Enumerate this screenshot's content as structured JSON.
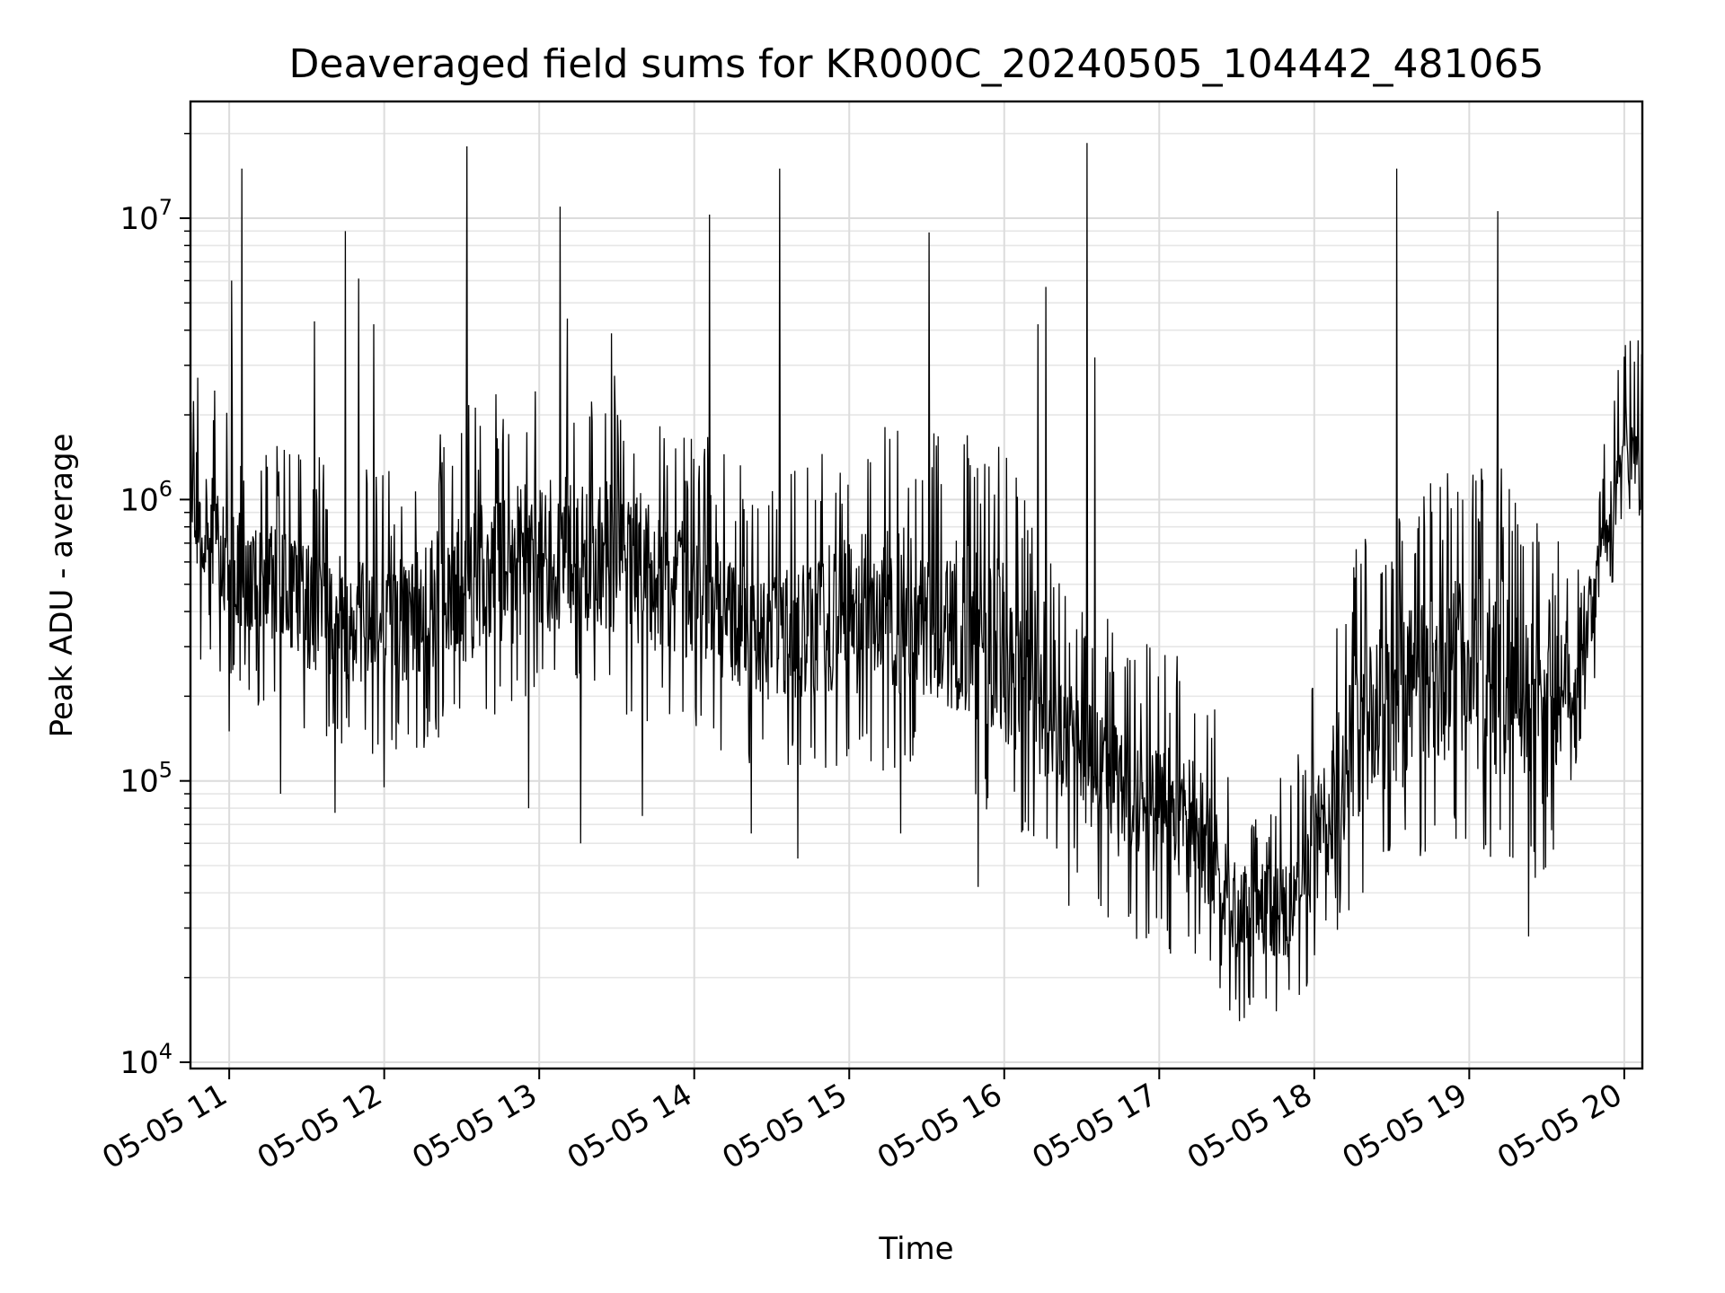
{
  "chart_data": {
    "type": "line",
    "title": "Deaveraged field sums for KR000C_20240505_104442_481065",
    "xlabel": "Time",
    "ylabel": "Peak ADU - average",
    "yscale": "log",
    "ylim": [
      9500,
      26000000
    ],
    "xlim": [
      "2024-05-05 10:45",
      "2024-05-05 20:07"
    ],
    "grid": true,
    "line_color": "#000000",
    "x_ticks": [
      "05-05 11",
      "05-05 12",
      "05-05 13",
      "05-05 14",
      "05-05 15",
      "05-05 16",
      "05-05 17",
      "05-05 18",
      "05-05 19",
      "05-05 20"
    ],
    "y_ticks": [
      {
        "base": "10",
        "exp": "4"
      },
      {
        "base": "10",
        "exp": "5"
      },
      {
        "base": "10",
        "exp": "6"
      },
      {
        "base": "10",
        "exp": "7"
      }
    ],
    "series": [
      {
        "envelope": [
          {
            "t": "2024-05-05 10:45",
            "low": 500000,
            "high": 2000000
          },
          {
            "t": "2024-05-05 11:00",
            "low": 300000,
            "high": 1200000
          },
          {
            "t": "2024-05-05 11:30",
            "low": 200000,
            "high": 900000
          },
          {
            "t": "2024-05-05 12:00",
            "low": 170000,
            "high": 700000
          },
          {
            "t": "2024-05-05 12:30",
            "low": 200000,
            "high": 1200000
          },
          {
            "t": "2024-05-05 13:00",
            "low": 250000,
            "high": 1600000
          },
          {
            "t": "2024-05-05 13:30",
            "low": 250000,
            "high": 1600000
          },
          {
            "t": "2024-05-05 14:00",
            "low": 200000,
            "high": 1000000
          },
          {
            "t": "2024-05-05 14:30",
            "low": 150000,
            "high": 700000
          },
          {
            "t": "2024-05-05 15:00",
            "low": 150000,
            "high": 1000000
          },
          {
            "t": "2024-05-05 15:30",
            "low": 150000,
            "high": 1100000
          },
          {
            "t": "2024-05-05 16:00",
            "low": 100000,
            "high": 900000
          },
          {
            "t": "2024-05-05 16:20",
            "low": 70000,
            "high": 300000
          },
          {
            "t": "2024-05-05 16:45",
            "low": 40000,
            "high": 200000
          },
          {
            "t": "2024-05-05 17:15",
            "low": 30000,
            "high": 150000
          },
          {
            "t": "2024-05-05 17:30",
            "low": 20000,
            "high": 60000
          },
          {
            "t": "2024-05-05 17:50",
            "low": 20000,
            "high": 60000
          },
          {
            "t": "2024-05-05 18:15",
            "low": 50000,
            "high": 400000
          },
          {
            "t": "2024-05-05 18:45",
            "low": 80000,
            "high": 700000
          },
          {
            "t": "2024-05-05 19:15",
            "low": 70000,
            "high": 800000
          },
          {
            "t": "2024-05-05 19:30",
            "low": 60000,
            "high": 400000
          },
          {
            "t": "2024-05-05 19:45",
            "low": 200000,
            "high": 600000
          },
          {
            "t": "2024-05-05 20:00",
            "low": 1000000,
            "high": 2000000
          },
          {
            "t": "2024-05-05 20:07",
            "low": 1000000,
            "high": 2200000
          }
        ],
        "spikes": [
          {
            "t": "2024-05-05 11:01",
            "y": 6000000
          },
          {
            "t": "2024-05-05 11:05",
            "y": 15000000
          },
          {
            "t": "2024-05-05 11:33",
            "y": 4300000
          },
          {
            "t": "2024-05-05 11:45",
            "y": 9000000
          },
          {
            "t": "2024-05-05 11:50",
            "y": 6100000
          },
          {
            "t": "2024-05-05 11:56",
            "y": 4200000
          },
          {
            "t": "2024-05-05 12:32",
            "y": 18000000
          },
          {
            "t": "2024-05-05 13:08",
            "y": 11000000
          },
          {
            "t": "2024-05-05 13:11",
            "y": 4400000
          },
          {
            "t": "2024-05-05 13:28",
            "y": 3900000
          },
          {
            "t": "2024-05-05 14:06",
            "y": 10300000
          },
          {
            "t": "2024-05-05 14:33",
            "y": 15000000
          },
          {
            "t": "2024-05-05 15:31",
            "y": 8900000
          },
          {
            "t": "2024-05-05 16:13",
            "y": 4200000
          },
          {
            "t": "2024-05-05 16:16",
            "y": 5700000
          },
          {
            "t": "2024-05-05 16:32",
            "y": 18500000
          },
          {
            "t": "2024-05-05 16:35",
            "y": 3200000
          },
          {
            "t": "2024-05-05 18:32",
            "y": 15000000
          },
          {
            "t": "2024-05-05 19:11",
            "y": 10600000
          }
        ],
        "dips": [
          {
            "t": "2024-05-05 10:49",
            "y": 270000
          },
          {
            "t": "2024-05-05 11:00",
            "y": 150000
          },
          {
            "t": "2024-05-05 11:20",
            "y": 90000
          },
          {
            "t": "2024-05-05 11:41",
            "y": 77000
          },
          {
            "t": "2024-05-05 12:00",
            "y": 95000
          },
          {
            "t": "2024-05-05 12:56",
            "y": 80000
          },
          {
            "t": "2024-05-05 13:16",
            "y": 60000
          },
          {
            "t": "2024-05-05 13:40",
            "y": 75000
          },
          {
            "t": "2024-05-05 14:22",
            "y": 65000
          },
          {
            "t": "2024-05-05 14:40",
            "y": 53000
          },
          {
            "t": "2024-05-05 15:20",
            "y": 65000
          },
          {
            "t": "2024-05-05 15:50",
            "y": 42000
          },
          {
            "t": "2024-05-05 16:25",
            "y": 36000
          },
          {
            "t": "2024-05-05 17:31",
            "y": 14000
          },
          {
            "t": "2024-05-05 17:35",
            "y": 16000
          },
          {
            "t": "2024-05-05 18:00",
            "y": 24000
          },
          {
            "t": "2024-05-05 19:23",
            "y": 28000
          }
        ]
      }
    ]
  }
}
